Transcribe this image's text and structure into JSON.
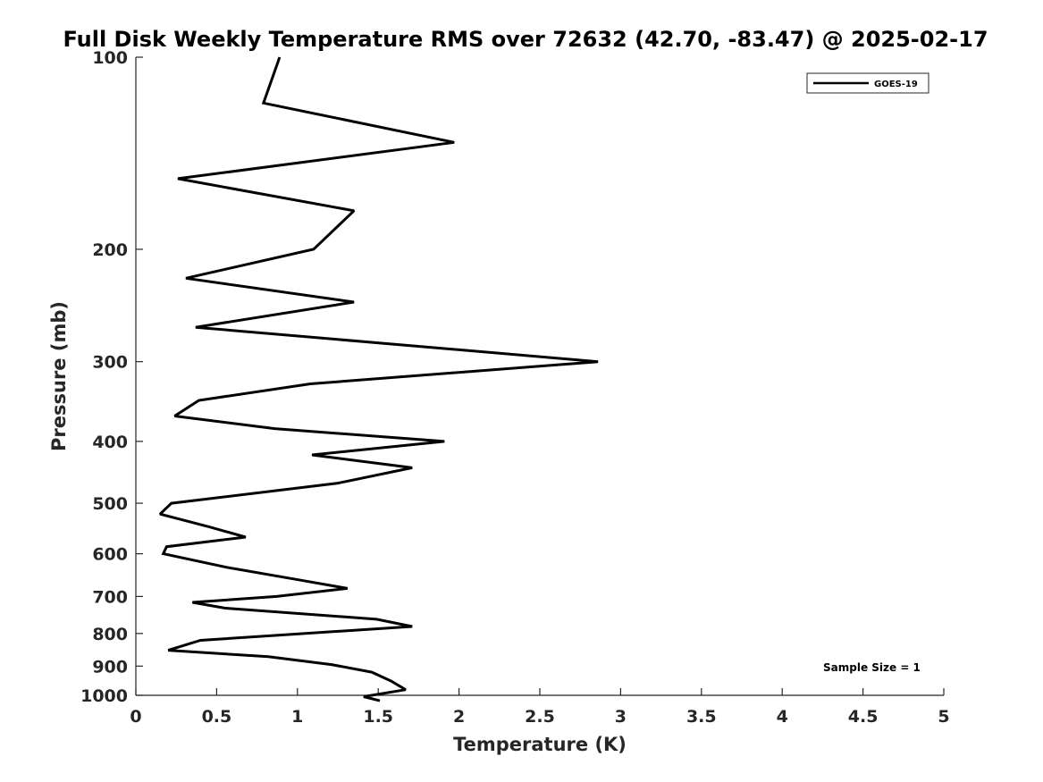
{
  "chart_data": {
    "type": "line",
    "title": "Full Disk Weekly Temperature RMS over 72632 (42.70, -83.47) @ 2025-02-17",
    "xlabel": "Temperature (K)",
    "ylabel": "Pressure (mb)",
    "xlim": [
      0,
      5
    ],
    "ylim": [
      100,
      1000
    ],
    "yscale": "log",
    "y_reversed": true,
    "grid": false,
    "x_ticks": [
      0,
      0.5,
      1,
      1.5,
      2,
      2.5,
      3,
      3.5,
      4,
      4.5,
      5
    ],
    "x_tick_labels": [
      "0",
      "0.5",
      "1",
      "1.5",
      "2",
      "2.5",
      "3",
      "3.5",
      "4",
      "4.5",
      "5"
    ],
    "y_ticks": [
      100,
      200,
      300,
      400,
      500,
      600,
      700,
      800,
      900,
      1000
    ],
    "y_tick_labels": [
      "100",
      "200",
      "300",
      "400",
      "500",
      "600",
      "700",
      "800",
      "900",
      "1000"
    ],
    "legend_position": "top-right",
    "annotation": "Sample Size = 1",
    "series": [
      {
        "name": "GOES-19",
        "color": "#000000",
        "x": [
          0.89,
          0.79,
          1.97,
          0.26,
          1.35,
          1.1,
          0.31,
          1.35,
          0.37,
          2.86,
          1.08,
          0.39,
          0.24,
          0.86,
          1.91,
          1.09,
          1.71,
          1.25,
          0.22,
          0.15,
          0.46,
          0.68,
          0.19,
          0.17,
          0.56,
          1.02,
          1.31,
          0.87,
          0.35,
          0.55,
          1.49,
          1.71,
          0.4,
          0.2,
          0.82,
          1.21,
          1.46,
          1.58,
          1.67,
          1.41,
          1.51
        ],
        "y": [
          100,
          118,
          136,
          155,
          174,
          200,
          222,
          242,
          265,
          300,
          325,
          345,
          365,
          382,
          400,
          420,
          440,
          465,
          500,
          520,
          545,
          565,
          585,
          600,
          630,
          660,
          680,
          700,
          715,
          730,
          760,
          780,
          820,
          850,
          870,
          895,
          920,
          950,
          980,
          1005,
          1020
        ]
      }
    ]
  }
}
